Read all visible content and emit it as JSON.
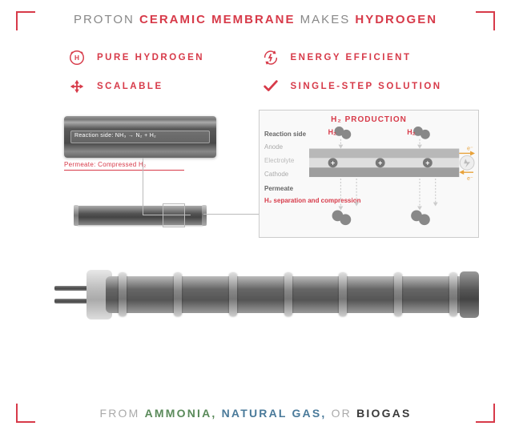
{
  "title": {
    "pre": "PROTON ",
    "em1": "CERAMIC MEMBRANE",
    "mid": " MAKES ",
    "em2": "HYDROGEN"
  },
  "features": [
    {
      "icon": "hydrogen-icon",
      "label": "PURE HYDROGEN"
    },
    {
      "icon": "bolt-cycle-icon",
      "label": "ENERGY EFFICIENT"
    },
    {
      "icon": "expand-icon",
      "label": "SCALABLE"
    },
    {
      "icon": "check-icon",
      "label": "SINGLE-STEP SOLUTION"
    }
  ],
  "tube_detail": {
    "reaction_label": "Reaction side: NH₃ → N₂ + H₂",
    "permeate_label": "Permeate: Compressed H₂"
  },
  "production": {
    "title": "H₂ PRODUCTION",
    "h2_label": "H₂",
    "layers": {
      "reaction": "Reaction side",
      "anode": "Anode",
      "electrolyte": "Electrolyte",
      "cathode": "Cathode",
      "permeate": "Permeate",
      "separation": "H₂ separation and compression"
    },
    "e_label": "e⁻",
    "colors": {
      "accent": "#d73a49",
      "molecule": "#888888",
      "proton": "#777777",
      "layer_anode": "#b8b8b8",
      "layer_elec": "#dedede",
      "layer_cath": "#9e9e9e",
      "arrow": "#cccccc",
      "e_arrow": "#e8a23a"
    }
  },
  "assembly": {
    "ring_positions_pct": [
      16,
      29,
      42,
      55,
      68,
      81,
      94
    ],
    "pipe_y": [
      20,
      36
    ]
  },
  "footer": {
    "pre": "FROM ",
    "ammonia": "AMMONIA,",
    "sep1": " ",
    "natural_gas": "NATURAL GAS,",
    "sep2": " OR ",
    "biogas": "BIOGAS"
  },
  "colors": {
    "accent": "#d73a49",
    "text_muted": "#888888"
  }
}
